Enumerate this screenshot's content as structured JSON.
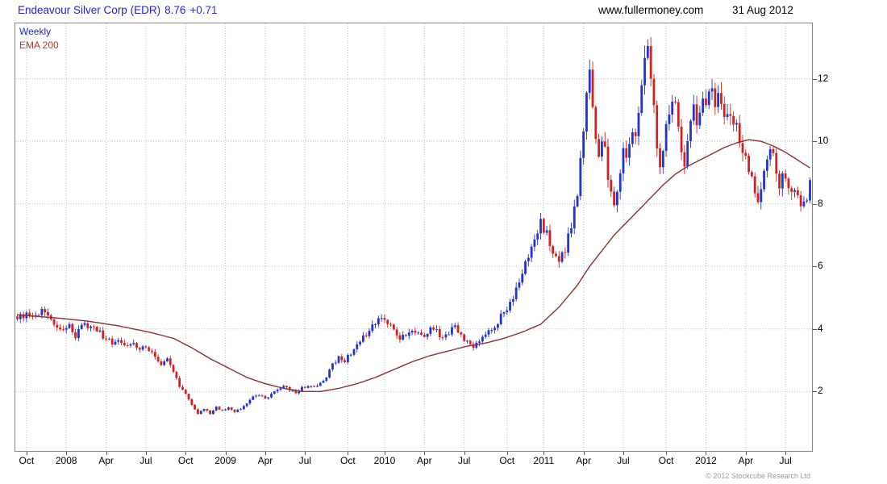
{
  "header": {
    "title": "Endeavour Silver Corp (EDR)",
    "price": "8.76",
    "change": "+0.71",
    "site": "www.fullermoney.com",
    "date": "31 Aug 2012"
  },
  "legend": {
    "timeframe": "Weekly",
    "overlay": "EMA 200"
  },
  "footer": {
    "copyright": "© 2012 Stockcube Research Ltd"
  },
  "colors": {
    "title": "#2222cc",
    "up": "#2233cc",
    "down": "#cc2222",
    "ema": "#8b3030",
    "grid": "#bdbdbd",
    "border": "#848484"
  },
  "chart_data": {
    "type": "candlestick",
    "title": "Endeavour Silver Corp (EDR) weekly candles with 200 EMA",
    "instrument": "Endeavour Silver Corp",
    "ticker": "EDR",
    "last_price": 8.76,
    "change": "+0.71",
    "timeframe": "weekly",
    "weeks_total": 260,
    "grid": "dotted",
    "legend_position": "top-left",
    "y_axis": {
      "side": "right",
      "ticks": [
        2,
        4,
        6,
        8,
        10,
        12
      ],
      "range": [
        0.1,
        13.77
      ]
    },
    "x_axis": {
      "ticks": [
        {
          "label": "Oct",
          "week": 3
        },
        {
          "label": "2008",
          "week": 16
        },
        {
          "label": "Apr",
          "week": 29
        },
        {
          "label": "Jul",
          "week": 42
        },
        {
          "label": "Oct",
          "week": 55
        },
        {
          "label": "2009",
          "week": 68
        },
        {
          "label": "Apr",
          "week": 81
        },
        {
          "label": "Jul",
          "week": 94
        },
        {
          "label": "Oct",
          "week": 108
        },
        {
          "label": "2010",
          "week": 120
        },
        {
          "label": "Apr",
          "week": 133
        },
        {
          "label": "Jul",
          "week": 146
        },
        {
          "label": "Oct",
          "week": 160
        },
        {
          "label": "2011",
          "week": 172
        },
        {
          "label": "Apr",
          "week": 185
        },
        {
          "label": "Jul",
          "week": 198
        },
        {
          "label": "Oct",
          "week": 212
        },
        {
          "label": "2012",
          "week": 225
        },
        {
          "label": "Apr",
          "week": 238
        },
        {
          "label": "Jul",
          "week": 251
        }
      ]
    },
    "series": {
      "anchor_format": "[week_index, price] points read off the chart; weekly candles interpolated between anchors",
      "final_close": 8.76,
      "close_anchors": [
        [
          0,
          4.35
        ],
        [
          3,
          4.5
        ],
        [
          5,
          4.3
        ],
        [
          8,
          4.6
        ],
        [
          10,
          4.35
        ],
        [
          13,
          4.05
        ],
        [
          15,
          3.9
        ],
        [
          17,
          4.15
        ],
        [
          19,
          3.8
        ],
        [
          21,
          4.2
        ],
        [
          23,
          4.05
        ],
        [
          26,
          3.95
        ],
        [
          29,
          3.7
        ],
        [
          31,
          3.55
        ],
        [
          33,
          3.7
        ],
        [
          35,
          3.5
        ],
        [
          37,
          3.6
        ],
        [
          39,
          3.35
        ],
        [
          41,
          3.45
        ],
        [
          43,
          3.3
        ],
        [
          45,
          3.15
        ],
        [
          47,
          2.9
        ],
        [
          49,
          3.0
        ],
        [
          51,
          2.6
        ],
        [
          53,
          2.2
        ],
        [
          55,
          1.9
        ],
        [
          57,
          1.6
        ],
        [
          59,
          1.3
        ],
        [
          61,
          1.45
        ],
        [
          63,
          1.3
        ],
        [
          65,
          1.5
        ],
        [
          67,
          1.4
        ],
        [
          69,
          1.5
        ],
        [
          71,
          1.35
        ],
        [
          73,
          1.45
        ],
        [
          75,
          1.6
        ],
        [
          77,
          1.8
        ],
        [
          79,
          1.9
        ],
        [
          81,
          1.75
        ],
        [
          83,
          1.95
        ],
        [
          85,
          2.1
        ],
        [
          87,
          2.2
        ],
        [
          89,
          2.05
        ],
        [
          91,
          1.95
        ],
        [
          93,
          2.1
        ],
        [
          95,
          2.2
        ],
        [
          97,
          2.15
        ],
        [
          99,
          2.3
        ],
        [
          101,
          2.45
        ],
        [
          103,
          2.85
        ],
        [
          105,
          3.05
        ],
        [
          107,
          2.95
        ],
        [
          109,
          3.25
        ],
        [
          111,
          3.5
        ],
        [
          113,
          3.75
        ],
        [
          115,
          3.95
        ],
        [
          117,
          4.15
        ],
        [
          119,
          4.45
        ],
        [
          121,
          4.25
        ],
        [
          123,
          3.9
        ],
        [
          125,
          3.65
        ],
        [
          127,
          3.85
        ],
        [
          129,
          4.0
        ],
        [
          131,
          3.9
        ],
        [
          133,
          3.8
        ],
        [
          135,
          4.0
        ],
        [
          137,
          3.9
        ],
        [
          139,
          3.7
        ],
        [
          141,
          3.9
        ],
        [
          143,
          4.1
        ],
        [
          145,
          3.85
        ],
        [
          147,
          3.55
        ],
        [
          149,
          3.4
        ],
        [
          151,
          3.6
        ],
        [
          153,
          3.8
        ],
        [
          155,
          4.0
        ],
        [
          157,
          4.25
        ],
        [
          159,
          4.55
        ],
        [
          161,
          4.85
        ],
        [
          163,
          5.25
        ],
        [
          165,
          5.75
        ],
        [
          167,
          6.35
        ],
        [
          169,
          6.95
        ],
        [
          171,
          7.35
        ],
        [
          173,
          7.0
        ],
        [
          175,
          6.4
        ],
        [
          177,
          6.05
        ],
        [
          179,
          6.55
        ],
        [
          181,
          7.25
        ],
        [
          183,
          8.4
        ],
        [
          184,
          9.3
        ],
        [
          185,
          10.4
        ],
        [
          186,
          11.7
        ],
        [
          187,
          12.1
        ],
        [
          188,
          11.3
        ],
        [
          189,
          10.2
        ],
        [
          190,
          9.3
        ],
        [
          191,
          10.2
        ],
        [
          192,
          9.6
        ],
        [
          193,
          8.9
        ],
        [
          194,
          8.3
        ],
        [
          195,
          7.9
        ],
        [
          196,
          8.6
        ],
        [
          197,
          9.2
        ],
        [
          198,
          9.7
        ],
        [
          199,
          9.3
        ],
        [
          200,
          9.9
        ],
        [
          201,
          10.4
        ],
        [
          202,
          10.0
        ],
        [
          203,
          10.8
        ],
        [
          204,
          11.6
        ],
        [
          205,
          12.4
        ],
        [
          206,
          12.9
        ],
        [
          207,
          12.3
        ],
        [
          208,
          11.1
        ],
        [
          209,
          9.9
        ],
        [
          210,
          9.1
        ],
        [
          211,
          9.6
        ],
        [
          212,
          10.4
        ],
        [
          213,
          11.0
        ],
        [
          214,
          11.5
        ],
        [
          215,
          11.0
        ],
        [
          216,
          10.4
        ],
        [
          217,
          9.7
        ],
        [
          218,
          9.4
        ],
        [
          219,
          10.1
        ],
        [
          220,
          10.6
        ],
        [
          221,
          11.0
        ],
        [
          222,
          10.6
        ],
        [
          223,
          11.0
        ],
        [
          224,
          11.3
        ],
        [
          225,
          10.9
        ],
        [
          226,
          11.4
        ],
        [
          227,
          11.8
        ],
        [
          228,
          11.3
        ],
        [
          229,
          11.6
        ],
        [
          230,
          11.1
        ],
        [
          231,
          10.8
        ],
        [
          232,
          11.1
        ],
        [
          233,
          10.7
        ],
        [
          234,
          10.3
        ],
        [
          235,
          10.6
        ],
        [
          236,
          10.1
        ],
        [
          237,
          9.8
        ],
        [
          238,
          9.4
        ],
        [
          239,
          9.0
        ],
        [
          240,
          8.7
        ],
        [
          241,
          8.3
        ],
        [
          242,
          8.0
        ],
        [
          243,
          8.6
        ],
        [
          244,
          9.1
        ],
        [
          245,
          9.6
        ],
        [
          246,
          9.9
        ],
        [
          247,
          9.4
        ],
        [
          248,
          9.0
        ],
        [
          249,
          8.7
        ],
        [
          250,
          9.1
        ],
        [
          251,
          8.8
        ],
        [
          252,
          8.4
        ],
        [
          253,
          8.2
        ],
        [
          254,
          8.5
        ],
        [
          255,
          8.1
        ],
        [
          256,
          7.9
        ],
        [
          257,
          8.1
        ],
        [
          258,
          7.95
        ],
        [
          259,
          8.76
        ]
      ],
      "ema200_anchors": [
        [
          0,
          4.45
        ],
        [
          13,
          4.35
        ],
        [
          23,
          4.25
        ],
        [
          33,
          4.1
        ],
        [
          43,
          3.9
        ],
        [
          51,
          3.7
        ],
        [
          57,
          3.4
        ],
        [
          63,
          3.05
        ],
        [
          69,
          2.75
        ],
        [
          75,
          2.45
        ],
        [
          81,
          2.25
        ],
        [
          87,
          2.1
        ],
        [
          93,
          2.0
        ],
        [
          99,
          2.0
        ],
        [
          105,
          2.1
        ],
        [
          111,
          2.25
        ],
        [
          117,
          2.45
        ],
        [
          123,
          2.7
        ],
        [
          129,
          2.95
        ],
        [
          135,
          3.15
        ],
        [
          141,
          3.3
        ],
        [
          147,
          3.45
        ],
        [
          153,
          3.55
        ],
        [
          159,
          3.7
        ],
        [
          165,
          3.9
        ],
        [
          171,
          4.15
        ],
        [
          177,
          4.7
        ],
        [
          183,
          5.4
        ],
        [
          187,
          6.0
        ],
        [
          191,
          6.5
        ],
        [
          195,
          7.0
        ],
        [
          199,
          7.4
        ],
        [
          203,
          7.8
        ],
        [
          207,
          8.2
        ],
        [
          211,
          8.6
        ],
        [
          215,
          8.95
        ],
        [
          219,
          9.2
        ],
        [
          223,
          9.4
        ],
        [
          227,
          9.6
        ],
        [
          231,
          9.8
        ],
        [
          235,
          9.95
        ],
        [
          239,
          10.05
        ],
        [
          243,
          10.0
        ],
        [
          247,
          9.85
        ],
        [
          251,
          9.65
        ],
        [
          255,
          9.4
        ],
        [
          259,
          9.15
        ]
      ]
    }
  }
}
